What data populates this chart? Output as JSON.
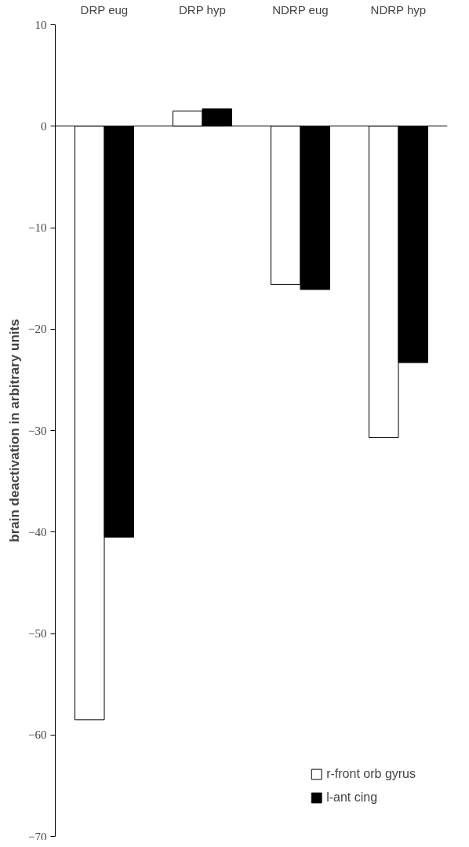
{
  "chart_data": {
    "type": "bar",
    "ylabel": "brain deactivation in arbitrary units",
    "categories": [
      "DRP eug",
      "DRP hyp",
      "NDRP eug",
      "NDRP hyp"
    ],
    "series": [
      {
        "name": "r-front orb gyrus",
        "color": "#ffffff",
        "values": [
          -58.5,
          1.5,
          -15.6,
          -30.7
        ]
      },
      {
        "name": "l-ant cing",
        "color": "#000000",
        "values": [
          -40.5,
          1.7,
          -16.1,
          -23.3
        ]
      }
    ],
    "ylim": [
      -70,
      10
    ],
    "yticks": [
      -70,
      -60,
      -50,
      -40,
      -30,
      -20,
      -10,
      0,
      10
    ],
    "legend": "bottom right"
  }
}
